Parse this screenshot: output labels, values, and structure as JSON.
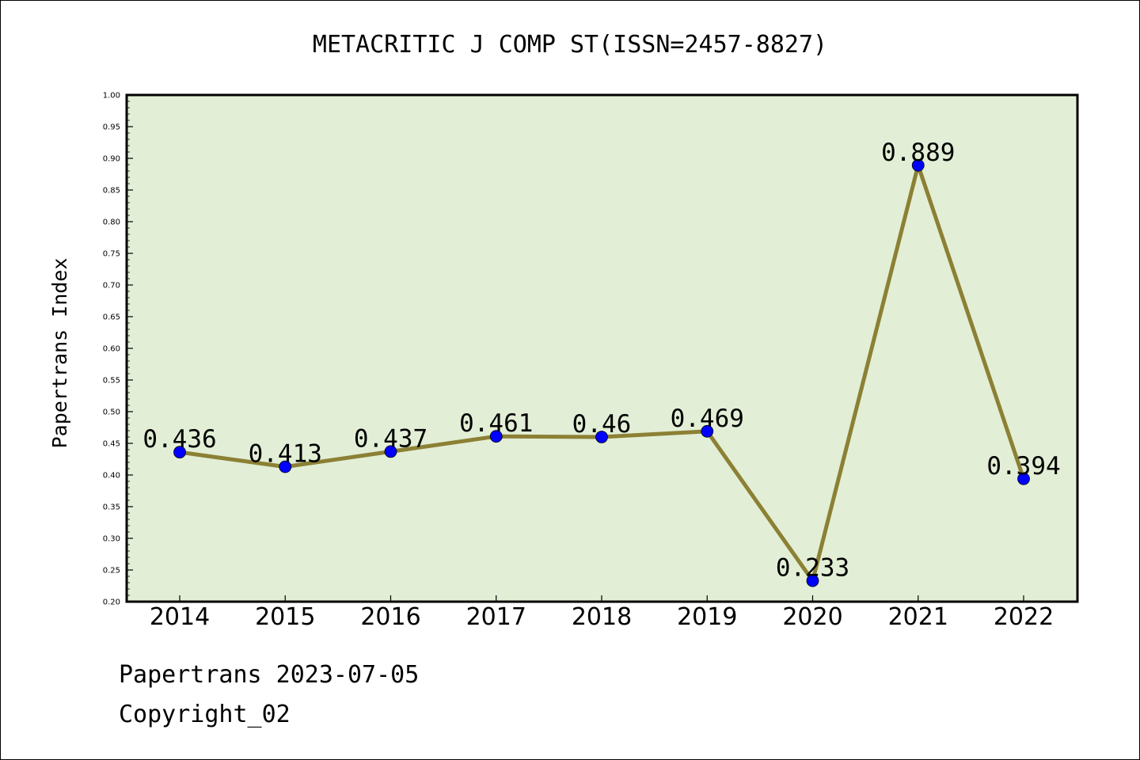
{
  "chart_data": {
    "type": "line",
    "title": "METACRITIC J COMP ST(ISSN=2457-8827)",
    "ylabel": "Papertrans Index",
    "xlabel": "",
    "categories": [
      "2014",
      "2015",
      "2016",
      "2017",
      "2018",
      "2019",
      "2020",
      "2021",
      "2022"
    ],
    "values": [
      0.436,
      0.413,
      0.437,
      0.461,
      0.46,
      0.469,
      0.233,
      0.889,
      0.394
    ],
    "data_labels": [
      "0.436",
      "0.413",
      "0.437",
      "0.461",
      "0.46",
      "0.469",
      "0.233",
      "0.889",
      "0.394"
    ],
    "ylim": [
      0.2,
      1.0
    ],
    "yticks": [
      "0.20",
      "0.25",
      "0.30",
      "0.35",
      "0.40",
      "0.45",
      "0.50",
      "0.55",
      "0.60",
      "0.65",
      "0.70",
      "0.75",
      "0.80",
      "0.85",
      "0.90",
      "0.95",
      "1.00"
    ],
    "grid": false,
    "colors": {
      "plot_background": "#e2efd6",
      "line": "#8c8035",
      "marker": "#0000ff"
    }
  },
  "footer": {
    "date_line": "Papertrans 2023-07-05",
    "copyright_line": "Copyright_02"
  }
}
